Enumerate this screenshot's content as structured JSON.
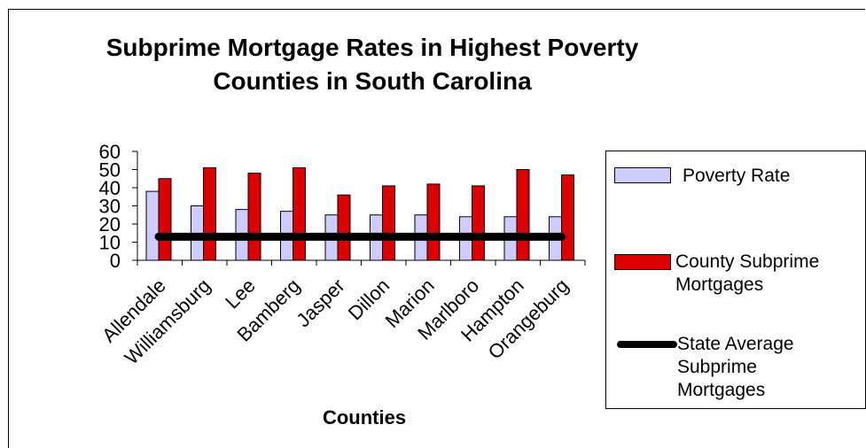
{
  "chart_data": {
    "type": "bar",
    "title": "Subprime Mortgage Rates in Highest Poverty Counties in South Carolina",
    "xlabel": "Counties",
    "ylabel": "",
    "ylim": [
      0,
      60
    ],
    "yticks": [
      "0",
      "10",
      "20",
      "30",
      "40",
      "50",
      "60"
    ],
    "grid": false,
    "legend_position": "right",
    "categories": [
      "Allendale",
      "Williamsburg",
      "Lee",
      "Bamberg",
      "Jasper",
      "Dillon",
      "Marion",
      "Marlboro",
      "Hampton",
      "Orangeburg"
    ],
    "series": [
      {
        "name": "Poverty Rate",
        "type": "bar",
        "color": "#ccccff",
        "values": [
          38,
          30,
          28,
          27,
          25,
          25,
          25,
          24,
          24,
          24
        ]
      },
      {
        "name": "County Subprime Mortgages",
        "type": "bar",
        "color": "#dd0000",
        "values": [
          45,
          51,
          48,
          51,
          36,
          41,
          42,
          41,
          50,
          47
        ]
      },
      {
        "name": "State Average Subprime Mortgages",
        "type": "line",
        "color": "#000000",
        "values": [
          13,
          13,
          13,
          13,
          13,
          13,
          13,
          13,
          13,
          13
        ]
      }
    ]
  },
  "legend": {
    "items": [
      {
        "label": "Poverty Rate"
      },
      {
        "label": "County Subprime Mortgages"
      },
      {
        "label": "State Average Subprime Mortgages"
      }
    ]
  }
}
